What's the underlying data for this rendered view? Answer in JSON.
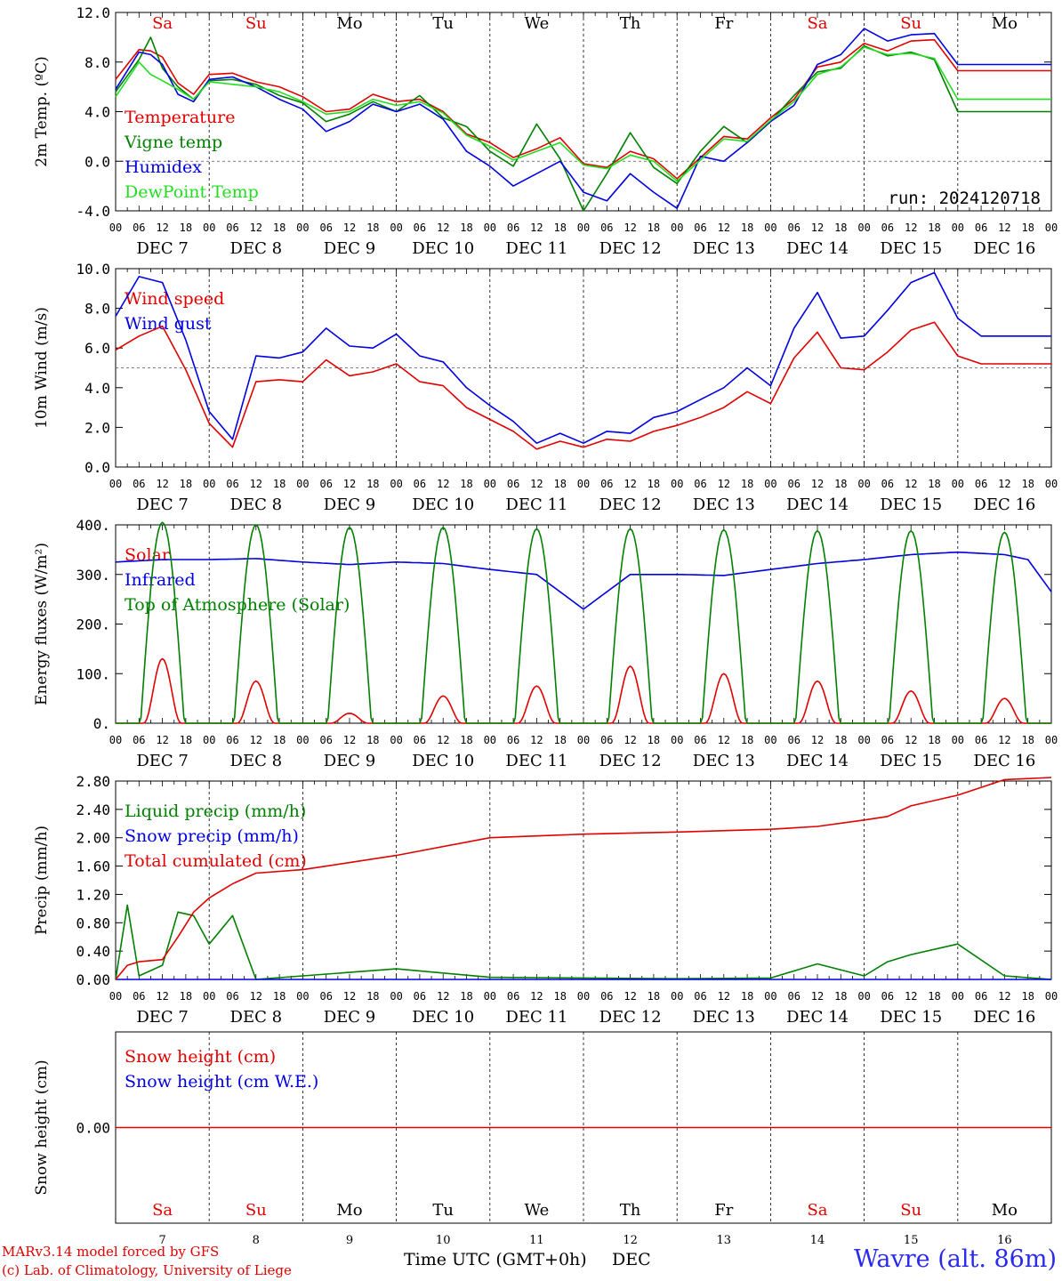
{
  "chart_data": [
    {
      "type": "line",
      "ylabel": "2m Temp. (ºC)",
      "ylim": [
        -4.0,
        12.0
      ],
      "yticks": [
        "-4.0",
        "0.0",
        "4.0",
        "8.0",
        "12.0"
      ],
      "reference_line": 0.0,
      "run_label": "run: 2024120718",
      "x_hours": [
        0,
        6,
        9,
        12,
        16,
        20,
        24,
        30,
        36,
        42,
        48,
        54,
        60,
        66,
        72,
        78,
        84,
        90,
        96,
        102,
        108,
        114,
        120,
        126,
        132,
        138,
        144,
        150,
        156,
        162,
        168,
        174,
        180,
        186,
        192,
        198,
        204,
        210,
        216,
        222,
        228,
        234,
        240
      ],
      "series": [
        {
          "name": "Temperature",
          "color": "#e00000",
          "values": [
            6.6,
            9.0,
            8.9,
            8.4,
            6.3,
            5.4,
            7.0,
            7.1,
            6.4,
            6.0,
            5.2,
            4.0,
            4.2,
            5.4,
            4.8,
            5.0,
            4.0,
            2.2,
            1.5,
            0.3,
            1.0,
            1.9,
            -0.2,
            -0.5,
            0.8,
            0.2,
            -1.4,
            0.3,
            2.0,
            1.8,
            3.5,
            5.0,
            7.6,
            8.0,
            9.5,
            8.9,
            9.7,
            9.8,
            7.3,
            7.3,
            7.3,
            7.3,
            7.3
          ]
        },
        {
          "name": "Vigne temp",
          "color": "#008000",
          "values": [
            5.6,
            8.2,
            10.0,
            7.5,
            6.0,
            5.0,
            6.5,
            6.6,
            6.2,
            5.3,
            4.7,
            3.2,
            3.8,
            4.8,
            4.0,
            5.3,
            3.5,
            2.8,
            0.8,
            -0.4,
            3.0,
            0.2,
            -4.0,
            -1.0,
            2.3,
            -0.5,
            -1.8,
            0.8,
            2.8,
            1.5,
            3.2,
            5.3,
            7.2,
            7.5,
            9.3,
            8.5,
            8.8,
            8.2,
            4.0,
            4.0,
            4.0,
            4.0,
            4.0
          ]
        },
        {
          "name": "Humidex",
          "color": "#0000e0",
          "values": [
            5.8,
            8.8,
            8.6,
            7.8,
            5.4,
            4.8,
            6.6,
            6.8,
            6.0,
            5.0,
            4.2,
            2.4,
            3.2,
            4.6,
            4.0,
            4.6,
            3.4,
            0.8,
            -0.4,
            -2.0,
            -1.0,
            0.0,
            -2.5,
            -3.2,
            -1.0,
            -2.5,
            -3.8,
            0.4,
            0.0,
            1.5,
            3.2,
            4.5,
            7.8,
            8.6,
            10.7,
            9.7,
            10.2,
            10.3,
            7.8,
            7.8,
            7.8,
            7.8,
            7.8
          ]
        },
        {
          "name": "DewPoint Temp",
          "color": "#22dd22",
          "values": [
            5.2,
            8.0,
            7.0,
            6.5,
            5.8,
            5.0,
            6.4,
            6.2,
            6.0,
            5.6,
            4.8,
            3.8,
            4.0,
            5.0,
            4.5,
            4.8,
            3.9,
            2.1,
            1.2,
            0.1,
            0.8,
            1.5,
            -0.3,
            -0.6,
            0.5,
            0.0,
            -1.6,
            0.1,
            1.8,
            1.6,
            3.3,
            4.8,
            7.0,
            7.6,
            9.2,
            8.6,
            8.7,
            8.3,
            5.0,
            5.0,
            5.0,
            5.0,
            5.0
          ]
        }
      ]
    },
    {
      "type": "line",
      "ylabel": "10m Wind (m/s)",
      "ylim": [
        0.0,
        10.0
      ],
      "yticks": [
        "0.0",
        "2.0",
        "4.0",
        "6.0",
        "8.0",
        "10.0"
      ],
      "reference_line": 5.0,
      "x_hours": [
        0,
        6,
        12,
        18,
        24,
        30,
        36,
        42,
        48,
        54,
        60,
        66,
        72,
        78,
        84,
        90,
        96,
        102,
        108,
        114,
        120,
        126,
        132,
        138,
        144,
        150,
        156,
        162,
        168,
        174,
        180,
        186,
        192,
        198,
        204,
        210,
        216,
        222,
        228,
        234,
        240
      ],
      "series": [
        {
          "name": "Wind speed",
          "color": "#e00000",
          "values": [
            5.9,
            6.6,
            7.1,
            4.9,
            2.2,
            1.0,
            4.3,
            4.4,
            4.3,
            5.4,
            4.6,
            4.8,
            5.2,
            4.3,
            4.1,
            3.0,
            2.4,
            1.8,
            0.9,
            1.3,
            1.0,
            1.4,
            1.3,
            1.8,
            2.1,
            2.5,
            3.0,
            3.8,
            3.2,
            5.5,
            6.8,
            5.0,
            4.9,
            5.8,
            6.9,
            7.3,
            5.6,
            5.2,
            5.2,
            5.2,
            5.2
          ]
        },
        {
          "name": "Wind gust",
          "color": "#0000e0",
          "values": [
            7.6,
            9.6,
            9.3,
            6.4,
            2.8,
            1.4,
            5.6,
            5.5,
            5.8,
            7.0,
            6.1,
            6.0,
            6.7,
            5.6,
            5.3,
            4.0,
            3.1,
            2.3,
            1.2,
            1.7,
            1.2,
            1.8,
            1.7,
            2.5,
            2.8,
            3.4,
            4.0,
            5.0,
            4.1,
            7.0,
            8.8,
            6.5,
            6.6,
            7.9,
            9.3,
            9.8,
            7.5,
            6.6,
            6.6,
            6.6,
            6.6
          ]
        }
      ]
    },
    {
      "type": "line",
      "ylabel": "Energy fluxes (W/m²)",
      "ylim": [
        0,
        400
      ],
      "yticks": [
        "0.",
        "100.",
        "200.",
        "300.",
        "400."
      ],
      "series": [
        {
          "name": "Solar",
          "color": "#e00000",
          "day_peaks": [
            130,
            85,
            20,
            55,
            75,
            115,
            100,
            85,
            65,
            50
          ]
        },
        {
          "name": "Infrared",
          "color": "#0000e0",
          "x_hours": [
            0,
            12,
            24,
            36,
            48,
            60,
            72,
            84,
            96,
            108,
            120,
            132,
            144,
            156,
            168,
            180,
            192,
            204,
            216,
            228,
            234,
            240
          ],
          "values": [
            325,
            330,
            330,
            332,
            325,
            320,
            325,
            322,
            310,
            300,
            230,
            300,
            300,
            298,
            310,
            322,
            330,
            340,
            345,
            340,
            330,
            265
          ]
        },
        {
          "name": "Top of Atmosphere (Solar)",
          "color": "#008000",
          "day_peaks": [
            405,
            400,
            395,
            395,
            392,
            392,
            390,
            388,
            388,
            385
          ]
        }
      ]
    },
    {
      "type": "line",
      "ylabel": "Precip (mm/h)",
      "ylim": [
        0.0,
        2.8
      ],
      "yticks": [
        "0.00",
        "0.40",
        "0.80",
        "1.20",
        "1.60",
        "2.00",
        "2.40",
        "2.80"
      ],
      "x_hours": [
        0,
        3,
        6,
        12,
        16,
        20,
        24,
        30,
        36,
        48,
        72,
        96,
        120,
        144,
        168,
        180,
        192,
        198,
        204,
        216,
        228,
        240
      ],
      "series": [
        {
          "name": "Liquid precip (mm/h)",
          "color": "#008000",
          "values": [
            0.0,
            1.05,
            0.05,
            0.2,
            0.95,
            0.9,
            0.5,
            0.9,
            0.0,
            0.05,
            0.15,
            0.03,
            0.02,
            0.01,
            0.02,
            0.22,
            0.05,
            0.25,
            0.35,
            0.5,
            0.05,
            0.0
          ]
        },
        {
          "name": "Snow precip (mm/h)",
          "color": "#0000e0",
          "values": [
            0,
            0,
            0,
            0,
            0,
            0,
            0,
            0,
            0,
            0,
            0,
            0,
            0,
            0,
            0,
            0,
            0,
            0,
            0,
            0,
            0,
            0
          ]
        },
        {
          "name": "Total cumulated (cm)",
          "color": "#e00000",
          "values": [
            0.0,
            0.2,
            0.25,
            0.28,
            0.6,
            0.95,
            1.15,
            1.35,
            1.5,
            1.55,
            1.75,
            2.0,
            2.05,
            2.08,
            2.12,
            2.16,
            2.25,
            2.3,
            2.45,
            2.6,
            2.82,
            2.85
          ]
        }
      ]
    },
    {
      "type": "line",
      "ylabel": "Snow height (cm)",
      "yticks": [
        "0.00"
      ],
      "series": [
        {
          "name": "Snow height (cm)",
          "color": "#e00000",
          "values": [
            0,
            0
          ]
        },
        {
          "name": "Snow height (cm W.E.)",
          "color": "#0000e0",
          "values": [
            0,
            0
          ]
        }
      ]
    }
  ],
  "hour_ticks": [
    "00",
    "06",
    "12",
    "18"
  ],
  "date_labels": [
    "DEC 7",
    "DEC 8",
    "DEC 9",
    "DEC 10",
    "DEC 11",
    "DEC 12",
    "DEC 13",
    "DEC 14",
    "DEC 15",
    "DEC 16"
  ],
  "weekdays": [
    "Sa",
    "Su",
    "Mo",
    "Tu",
    "We",
    "Th",
    "Fr",
    "Sa",
    "Su",
    "Mo"
  ],
  "weekend_flags": [
    true,
    true,
    false,
    false,
    false,
    false,
    false,
    true,
    true,
    false
  ],
  "day_numbers": [
    "7",
    "8",
    "9",
    "10",
    "11",
    "12",
    "13",
    "14",
    "15",
    "16"
  ],
  "footer": {
    "credit_line1": "MARv3.14 model forced by GFS",
    "credit_line2": "(c) Lab. of Climatology, University of Liege",
    "xaxis_title": "Time UTC (GMT+0h)",
    "xaxis_month": "DEC",
    "station": "Wavre (alt. 86m)"
  }
}
